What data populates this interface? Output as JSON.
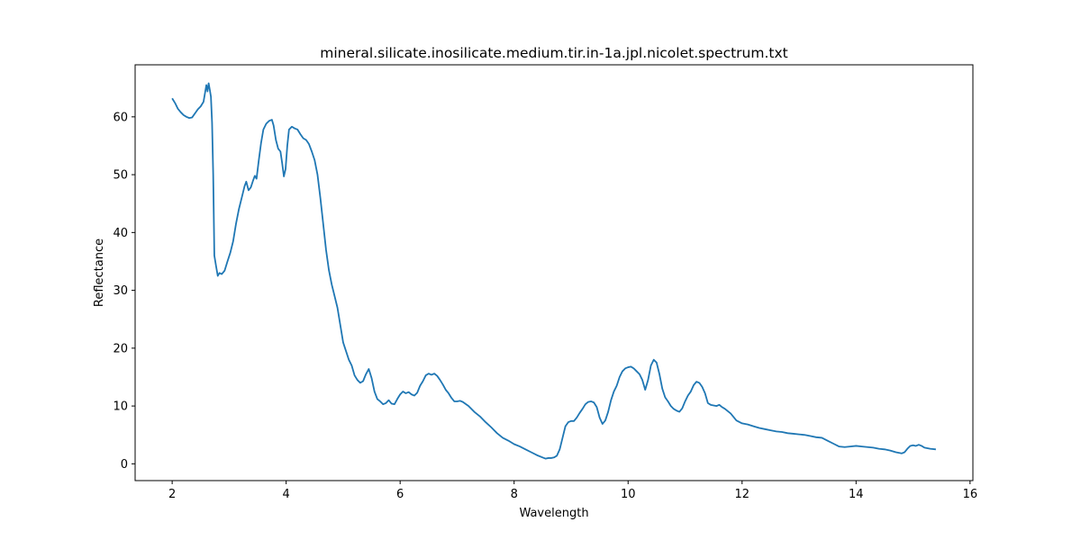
{
  "chart_data": {
    "type": "line",
    "title": "mineral.silicate.inosilicate.medium.tir.in-1a.jpl.nicolet.spectrum.txt",
    "xlabel": "Wavelength",
    "ylabel": "Reflectance",
    "xlim": [
      1.35,
      16.05
    ],
    "ylim": [
      -2.9,
      69.0
    ],
    "xticks": [
      2,
      4,
      6,
      8,
      10,
      12,
      14,
      16
    ],
    "yticks": [
      0,
      10,
      20,
      30,
      40,
      50,
      60
    ],
    "grid": false,
    "line_color": "#1f77b4",
    "series": [
      {
        "points": [
          [
            2.0,
            63.2
          ],
          [
            2.05,
            62.4
          ],
          [
            2.1,
            61.4
          ],
          [
            2.15,
            60.8
          ],
          [
            2.2,
            60.3
          ],
          [
            2.25,
            60.0
          ],
          [
            2.3,
            59.8
          ],
          [
            2.35,
            59.9
          ],
          [
            2.4,
            60.6
          ],
          [
            2.45,
            61.3
          ],
          [
            2.5,
            61.8
          ],
          [
            2.55,
            62.6
          ],
          [
            2.6,
            65.5
          ],
          [
            2.62,
            64.4
          ],
          [
            2.64,
            65.8
          ],
          [
            2.66,
            64.7
          ],
          [
            2.68,
            63.5
          ],
          [
            2.7,
            59.0
          ],
          [
            2.72,
            50.0
          ],
          [
            2.74,
            36.0
          ],
          [
            2.77,
            34.2
          ],
          [
            2.8,
            32.5
          ],
          [
            2.83,
            33.0
          ],
          [
            2.87,
            32.8
          ],
          [
            2.92,
            33.4
          ],
          [
            2.97,
            35.0
          ],
          [
            3.02,
            36.5
          ],
          [
            3.07,
            38.5
          ],
          [
            3.12,
            41.5
          ],
          [
            3.17,
            44.0
          ],
          [
            3.22,
            46.0
          ],
          [
            3.27,
            48.0
          ],
          [
            3.3,
            48.8
          ],
          [
            3.34,
            47.3
          ],
          [
            3.38,
            47.8
          ],
          [
            3.42,
            49.0
          ],
          [
            3.45,
            49.8
          ],
          [
            3.48,
            49.3
          ],
          [
            3.52,
            52.5
          ],
          [
            3.56,
            55.5
          ],
          [
            3.6,
            57.8
          ],
          [
            3.65,
            58.8
          ],
          [
            3.7,
            59.3
          ],
          [
            3.75,
            59.5
          ],
          [
            3.78,
            58.5
          ],
          [
            3.82,
            56.0
          ],
          [
            3.86,
            54.5
          ],
          [
            3.9,
            54.0
          ],
          [
            3.93,
            52.0
          ],
          [
            3.96,
            49.7
          ],
          [
            3.99,
            51.0
          ],
          [
            4.02,
            55.0
          ],
          [
            4.05,
            57.8
          ],
          [
            4.1,
            58.3
          ],
          [
            4.15,
            58.0
          ],
          [
            4.2,
            57.8
          ],
          [
            4.25,
            57.0
          ],
          [
            4.3,
            56.3
          ],
          [
            4.35,
            56.0
          ],
          [
            4.4,
            55.3
          ],
          [
            4.45,
            54.0
          ],
          [
            4.5,
            52.5
          ],
          [
            4.55,
            50.0
          ],
          [
            4.6,
            46.0
          ],
          [
            4.65,
            41.5
          ],
          [
            4.7,
            37.0
          ],
          [
            4.75,
            33.5
          ],
          [
            4.8,
            31.0
          ],
          [
            4.85,
            29.0
          ],
          [
            4.9,
            27.0
          ],
          [
            4.95,
            24.0
          ],
          [
            5.0,
            21.0
          ],
          [
            5.05,
            19.5
          ],
          [
            5.1,
            18.0
          ],
          [
            5.15,
            17.0
          ],
          [
            5.2,
            15.3
          ],
          [
            5.25,
            14.5
          ],
          [
            5.3,
            14.0
          ],
          [
            5.35,
            14.3
          ],
          [
            5.4,
            15.5
          ],
          [
            5.45,
            16.4
          ],
          [
            5.5,
            14.8
          ],
          [
            5.55,
            12.5
          ],
          [
            5.6,
            11.2
          ],
          [
            5.65,
            10.8
          ],
          [
            5.7,
            10.3
          ],
          [
            5.75,
            10.5
          ],
          [
            5.8,
            11.0
          ],
          [
            5.85,
            10.4
          ],
          [
            5.9,
            10.3
          ],
          [
            5.95,
            11.2
          ],
          [
            6.0,
            12.0
          ],
          [
            6.05,
            12.5
          ],
          [
            6.1,
            12.2
          ],
          [
            6.15,
            12.4
          ],
          [
            6.2,
            12.0
          ],
          [
            6.25,
            11.8
          ],
          [
            6.3,
            12.3
          ],
          [
            6.35,
            13.5
          ],
          [
            6.4,
            14.3
          ],
          [
            6.45,
            15.3
          ],
          [
            6.5,
            15.6
          ],
          [
            6.55,
            15.4
          ],
          [
            6.6,
            15.6
          ],
          [
            6.65,
            15.2
          ],
          [
            6.7,
            14.5
          ],
          [
            6.75,
            13.7
          ],
          [
            6.8,
            12.8
          ],
          [
            6.85,
            12.2
          ],
          [
            6.9,
            11.4
          ],
          [
            6.95,
            10.8
          ],
          [
            7.0,
            10.8
          ],
          [
            7.05,
            10.9
          ],
          [
            7.1,
            10.7
          ],
          [
            7.2,
            10.0
          ],
          [
            7.3,
            9.0
          ],
          [
            7.4,
            8.2
          ],
          [
            7.5,
            7.2
          ],
          [
            7.6,
            6.3
          ],
          [
            7.7,
            5.3
          ],
          [
            7.8,
            4.5
          ],
          [
            7.9,
            4.0
          ],
          [
            8.0,
            3.4
          ],
          [
            8.1,
            3.0
          ],
          [
            8.2,
            2.5
          ],
          [
            8.3,
            2.0
          ],
          [
            8.4,
            1.5
          ],
          [
            8.5,
            1.1
          ],
          [
            8.55,
            0.9
          ],
          [
            8.6,
            1.0
          ],
          [
            8.65,
            1.0
          ],
          [
            8.7,
            1.1
          ],
          [
            8.75,
            1.4
          ],
          [
            8.8,
            2.5
          ],
          [
            8.85,
            4.5
          ],
          [
            8.9,
            6.5
          ],
          [
            8.95,
            7.2
          ],
          [
            9.0,
            7.4
          ],
          [
            9.05,
            7.4
          ],
          [
            9.1,
            8.0
          ],
          [
            9.15,
            8.8
          ],
          [
            9.2,
            9.5
          ],
          [
            9.25,
            10.3
          ],
          [
            9.3,
            10.7
          ],
          [
            9.35,
            10.8
          ],
          [
            9.4,
            10.6
          ],
          [
            9.45,
            9.8
          ],
          [
            9.5,
            8.0
          ],
          [
            9.55,
            6.9
          ],
          [
            9.6,
            7.5
          ],
          [
            9.65,
            9.0
          ],
          [
            9.7,
            11.0
          ],
          [
            9.75,
            12.5
          ],
          [
            9.8,
            13.5
          ],
          [
            9.85,
            15.0
          ],
          [
            9.9,
            16.0
          ],
          [
            9.95,
            16.5
          ],
          [
            10.0,
            16.7
          ],
          [
            10.05,
            16.8
          ],
          [
            10.1,
            16.5
          ],
          [
            10.15,
            16.0
          ],
          [
            10.2,
            15.5
          ],
          [
            10.25,
            14.5
          ],
          [
            10.3,
            12.8
          ],
          [
            10.35,
            14.5
          ],
          [
            10.4,
            17.0
          ],
          [
            10.45,
            18.0
          ],
          [
            10.5,
            17.5
          ],
          [
            10.55,
            15.5
          ],
          [
            10.6,
            13.0
          ],
          [
            10.65,
            11.5
          ],
          [
            10.7,
            10.8
          ],
          [
            10.75,
            10.0
          ],
          [
            10.8,
            9.5
          ],
          [
            10.85,
            9.2
          ],
          [
            10.9,
            9.0
          ],
          [
            10.95,
            9.6
          ],
          [
            11.0,
            10.8
          ],
          [
            11.05,
            11.8
          ],
          [
            11.1,
            12.5
          ],
          [
            11.15,
            13.6
          ],
          [
            11.2,
            14.2
          ],
          [
            11.25,
            14.0
          ],
          [
            11.3,
            13.3
          ],
          [
            11.35,
            12.2
          ],
          [
            11.4,
            10.5
          ],
          [
            11.45,
            10.2
          ],
          [
            11.5,
            10.1
          ],
          [
            11.55,
            10.0
          ],
          [
            11.6,
            10.2
          ],
          [
            11.65,
            9.8
          ],
          [
            11.7,
            9.5
          ],
          [
            11.8,
            8.7
          ],
          [
            11.9,
            7.5
          ],
          [
            12.0,
            7.0
          ],
          [
            12.1,
            6.8
          ],
          [
            12.2,
            6.5
          ],
          [
            12.3,
            6.2
          ],
          [
            12.4,
            6.0
          ],
          [
            12.5,
            5.8
          ],
          [
            12.6,
            5.6
          ],
          [
            12.7,
            5.5
          ],
          [
            12.8,
            5.3
          ],
          [
            12.9,
            5.2
          ],
          [
            13.0,
            5.1
          ],
          [
            13.1,
            5.0
          ],
          [
            13.2,
            4.8
          ],
          [
            13.3,
            4.6
          ],
          [
            13.4,
            4.5
          ],
          [
            13.5,
            4.0
          ],
          [
            13.6,
            3.5
          ],
          [
            13.7,
            3.0
          ],
          [
            13.8,
            2.9
          ],
          [
            13.9,
            3.0
          ],
          [
            14.0,
            3.1
          ],
          [
            14.1,
            3.0
          ],
          [
            14.2,
            2.9
          ],
          [
            14.3,
            2.8
          ],
          [
            14.4,
            2.6
          ],
          [
            14.5,
            2.5
          ],
          [
            14.6,
            2.3
          ],
          [
            14.7,
            2.0
          ],
          [
            14.8,
            1.8
          ],
          [
            14.85,
            2.0
          ],
          [
            14.9,
            2.6
          ],
          [
            14.95,
            3.1
          ],
          [
            15.0,
            3.2
          ],
          [
            15.05,
            3.1
          ],
          [
            15.1,
            3.3
          ],
          [
            15.15,
            3.1
          ],
          [
            15.2,
            2.8
          ],
          [
            15.25,
            2.7
          ],
          [
            15.3,
            2.6
          ],
          [
            15.4,
            2.5
          ]
        ]
      }
    ]
  }
}
